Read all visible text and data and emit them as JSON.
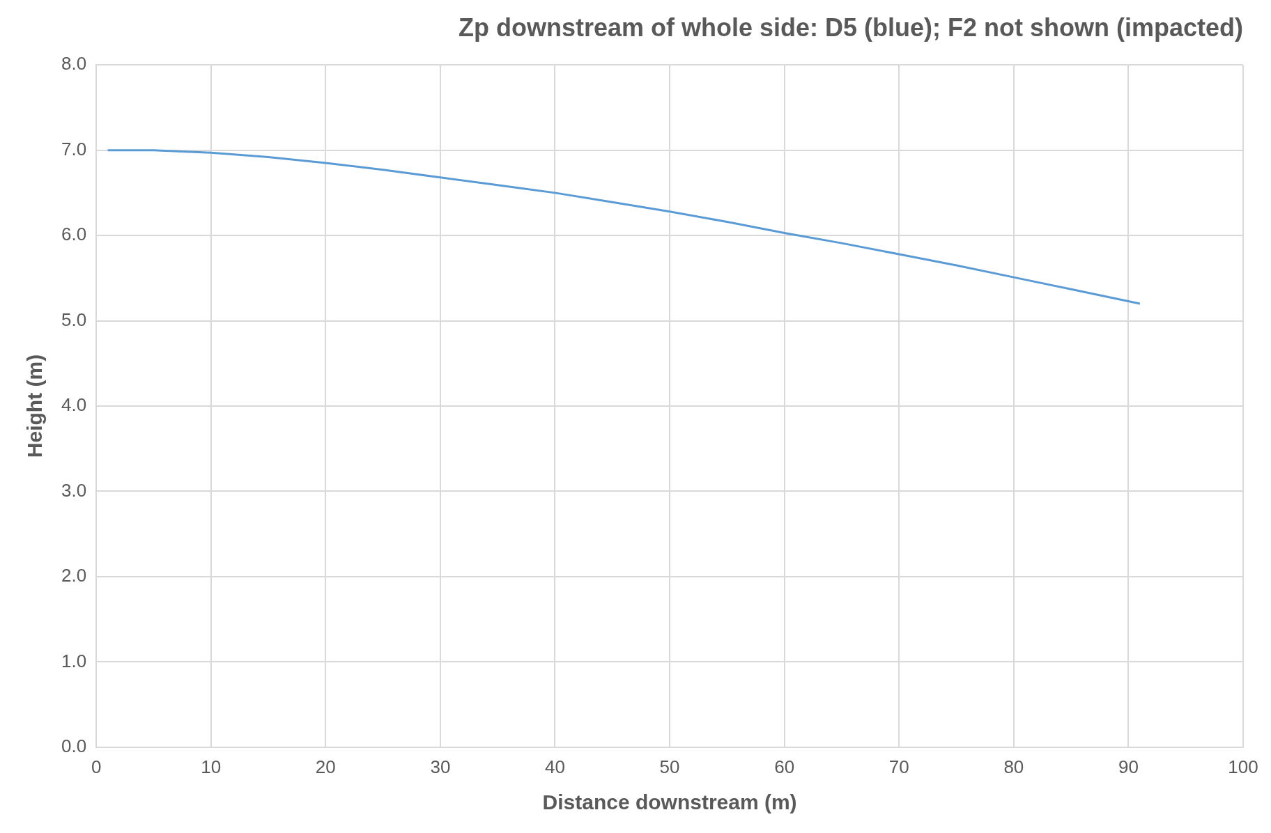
{
  "chart_data": {
    "type": "line",
    "title": "Zp downstream of whole side: D5 (blue); F2 not shown (impacted)",
    "xlabel": "Distance downstream (m)",
    "ylabel": "Height (m)",
    "x": [
      1,
      5,
      10,
      15,
      20,
      25,
      30,
      35,
      40,
      45,
      50,
      55,
      60,
      65,
      70,
      75,
      80,
      85,
      91
    ],
    "series": [
      {
        "color": "#5b9bd5",
        "values": [
          7.0,
          7.0,
          6.97,
          6.92,
          6.85,
          6.77,
          6.68,
          6.59,
          6.5,
          6.39,
          6.28,
          6.16,
          6.03,
          5.91,
          5.78,
          5.65,
          5.51,
          5.37,
          5.2
        ]
      }
    ],
    "xlim": [
      0,
      100
    ],
    "xticks": [
      0,
      10,
      20,
      30,
      40,
      50,
      60,
      70,
      80,
      90,
      100
    ],
    "ylim": [
      0,
      8
    ],
    "yticks": [
      {
        "value": 0,
        "label": "0.0"
      },
      {
        "value": 1,
        "label": "1.0"
      },
      {
        "value": 2,
        "label": "2.0"
      },
      {
        "value": 3,
        "label": "3.0"
      },
      {
        "value": 4,
        "label": "4.0"
      },
      {
        "value": 5,
        "label": "5.0"
      },
      {
        "value": 6,
        "label": "6.0"
      },
      {
        "value": 7,
        "label": "7.0"
      },
      {
        "value": 8,
        "label": "8.0"
      }
    ],
    "grid": true,
    "marker": "none",
    "line_style": "solid"
  }
}
